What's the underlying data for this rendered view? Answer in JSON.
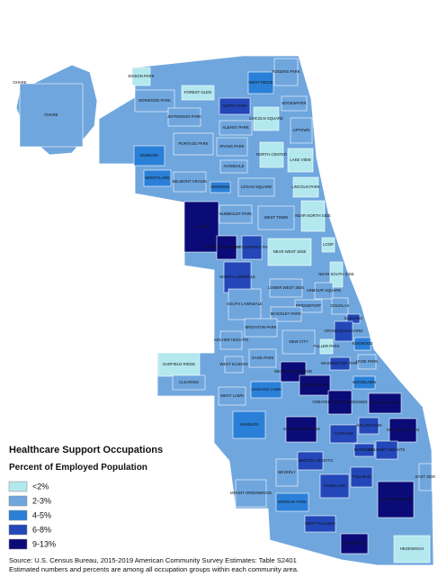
{
  "legend": {
    "title": "Healthcare Support Occupations",
    "subtitle": "Percent of Employed Population",
    "classes": [
      {
        "label": "<2%",
        "color": "#b3e8ee"
      },
      {
        "label": "2-3%",
        "color": "#6fa6de"
      },
      {
        "label": "4-5%",
        "color": "#2a80d8"
      },
      {
        "label": "6-8%",
        "color": "#2347b8"
      },
      {
        "label": "9-13%",
        "color": "#0b0b78"
      }
    ]
  },
  "areas": [
    {
      "label": "OHARE",
      "class": 1
    },
    {
      "label": "OHARE",
      "class": 1
    },
    {
      "label": "EDISON PARK",
      "class": 0
    },
    {
      "label": "NORWOOD PARK",
      "class": 1
    },
    {
      "label": "FOREST GLEN",
      "class": 0
    },
    {
      "label": "NORTH PARK",
      "class": 3
    },
    {
      "label": "WEST RIDGE",
      "class": 2
    },
    {
      "label": "ROGERS PARK",
      "class": 1
    },
    {
      "label": "JEFFERSON PARK",
      "class": 1
    },
    {
      "label": "ALBANY PARK",
      "class": 1
    },
    {
      "label": "LINCOLN SQUARE",
      "class": 0
    },
    {
      "label": "EDGEWATER",
      "class": 1
    },
    {
      "label": "UPTOWN",
      "class": 1
    },
    {
      "label": "DUNNING",
      "class": 2
    },
    {
      "label": "PORTAGE PARK",
      "class": 1
    },
    {
      "label": "IRVING PARK",
      "class": 1
    },
    {
      "label": "NORTH CENTER",
      "class": 0
    },
    {
      "label": "LAKE VIEW",
      "class": 0
    },
    {
      "label": "AVONDALE",
      "class": 1
    },
    {
      "label": "MONTCLARE",
      "class": 2
    },
    {
      "label": "BELMONT CRAGIN",
      "class": 1
    },
    {
      "label": "HERMOSA",
      "class": 2
    },
    {
      "label": "LOGAN SQUARE",
      "class": 1
    },
    {
      "label": "LINCOLN PARK",
      "class": 0
    },
    {
      "label": "AUSTIN",
      "class": 4
    },
    {
      "label": "HUMBOLDT PARK",
      "class": 1
    },
    {
      "label": "WEST TOWN",
      "class": 1
    },
    {
      "label": "NEAR NORTH SIDE",
      "class": 0
    },
    {
      "label": "WEST GARFIELD PARK",
      "class": 4
    },
    {
      "label": "EAST GARFIELD PARK",
      "class": 3
    },
    {
      "label": "NEAR WEST SIDE",
      "class": 0
    },
    {
      "label": "LOOP",
      "class": 0
    },
    {
      "label": "NORTH LAWNDALE",
      "class": 3
    },
    {
      "label": "NEAR SOUTH SIDE",
      "class": 0
    },
    {
      "label": "LOWER WEST SIDE",
      "class": 1
    },
    {
      "label": "ARMOUR SQUARE",
      "class": 1
    },
    {
      "label": "SOUTH LAWNDALE",
      "class": 1
    },
    {
      "label": "BRIDGEPORT",
      "class": 1
    },
    {
      "label": "DOUGLAS",
      "class": 1
    },
    {
      "label": "MCKINLEY PARK",
      "class": 1
    },
    {
      "label": "OAKLAND",
      "class": 3
    },
    {
      "label": "BRIGHTON PARK",
      "class": 1
    },
    {
      "label": "GRAND BOULEVARD",
      "class": 3
    },
    {
      "label": "ARCHER HEIGHTS",
      "class": 1
    },
    {
      "label": "NEW CITY",
      "class": 1
    },
    {
      "label": "FULLER PARK",
      "class": 0
    },
    {
      "label": "KENWOOD",
      "class": 2
    },
    {
      "label": "GARFIELD RIDGE",
      "class": 0
    },
    {
      "label": "WEST ELSDON",
      "class": 1
    },
    {
      "label": "GAGE PARK",
      "class": 1
    },
    {
      "label": "WASHINGTON PARK",
      "class": 3
    },
    {
      "label": "HYDE PARK",
      "class": 1
    },
    {
      "label": "WEST ENGLEWOOD",
      "class": 4
    },
    {
      "label": "ENGLEWOOD",
      "class": 4
    },
    {
      "label": "WOODLAWN",
      "class": 2
    },
    {
      "label": "CLEARING",
      "class": 1
    },
    {
      "label": "WEST LAWN",
      "class": 1
    },
    {
      "label": "CHICAGO LAWN",
      "class": 2
    },
    {
      "label": "GREATER GRAND CROSSING",
      "class": 4
    },
    {
      "label": "SOUTH SHORE",
      "class": 4
    },
    {
      "label": "ASHBURN",
      "class": 2
    },
    {
      "label": "AUBURN GRESHAM",
      "class": 4
    },
    {
      "label": "CHATHAM",
      "class": 3
    },
    {
      "label": "AVALON PARK",
      "class": 3
    },
    {
      "label": "SOUTH CHICAGO",
      "class": 4
    },
    {
      "label": "BURNSIDE",
      "class": 3
    },
    {
      "label": "CALUMET HEIGHTS",
      "class": 3
    },
    {
      "label": "WASHINGTON HEIGHTS",
      "class": 3
    },
    {
      "label": "BEVERLY",
      "class": 1
    },
    {
      "label": "PULLMAN",
      "class": 3
    },
    {
      "label": "EAST SIDE",
      "class": 1
    },
    {
      "label": "MOUNT GREENWOOD",
      "class": 1
    },
    {
      "label": "ROSELAND",
      "class": 3
    },
    {
      "label": "SOUTH DEERING",
      "class": 4
    },
    {
      "label": "MORGAN PARK",
      "class": 2
    },
    {
      "label": "WEST PULLMAN",
      "class": 3
    },
    {
      "label": "RIVERDALE",
      "class": 4
    },
    {
      "label": "HEGEWISCH",
      "class": 0
    }
  ],
  "source": [
    "Source: U.S. Census Bureau, 2015-2019 American Community Survey Estimates: Table S2401",
    "Estimated numbers and percents are among all occupation groups within each community area."
  ]
}
